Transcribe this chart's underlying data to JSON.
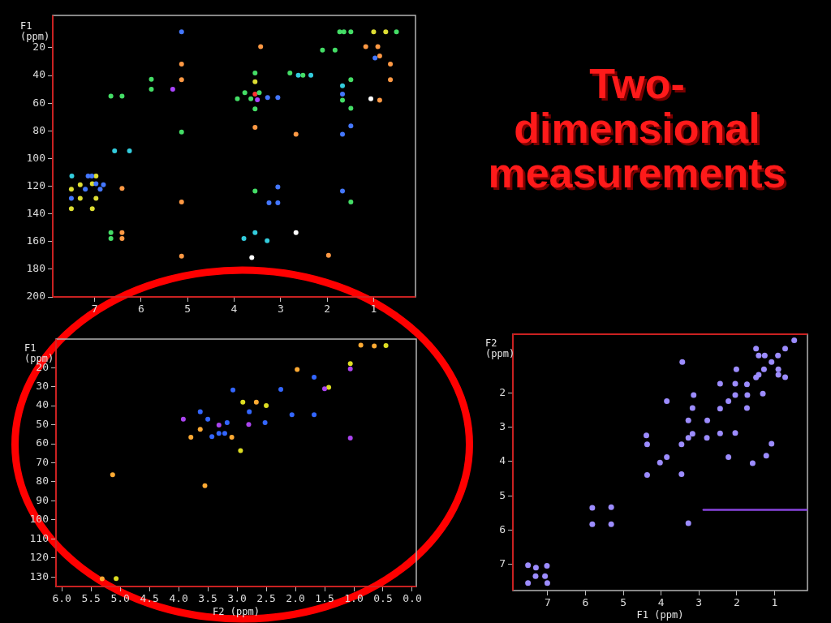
{
  "chart_data": [
    {
      "type": "scatter",
      "ylabel": "F1 (ppm)",
      "xlim": [
        7.9,
        0.1
      ],
      "ylim": [
        200,
        -3.4
      ],
      "xticks": [
        7,
        6,
        5,
        4,
        3,
        2,
        1
      ],
      "yticks": [
        20,
        40,
        60,
        80,
        100,
        120,
        140,
        160,
        180,
        200
      ],
      "marker": "circle",
      "series": [
        {
          "color": "#44dd66",
          "x": [
            5.78,
            5.78,
            6.65,
            6.41,
            5.13,
            6.65,
            6.65,
            1.73,
            1.64,
            1.49,
            0.51,
            2.1,
            1.83,
            2.8,
            2.52,
            1.49,
            1.67,
            1.49,
            3.93,
            3.77,
            3.64,
            3.46,
            3.55,
            3.55,
            1.49,
            3.55
          ],
          "values": [
            42.7,
            50,
            54.9,
            54.9,
            80.8,
            153.5,
            157.8,
            8.4,
            8.4,
            8.4,
            8.4,
            21.6,
            21.6,
            38.2,
            39.8,
            43.1,
            57.8,
            63.7,
            56.9,
            52.5,
            56.9,
            52.5,
            64.1,
            123.5,
            131.4,
            38.2
          ]
        },
        {
          "color": "#33ccdd",
          "x": [
            6.57,
            6.25,
            7.49,
            2.62,
            2.35,
            1.67,
            3.55,
            3.29,
            3.79
          ],
          "values": [
            94.5,
            94.5,
            112.7,
            39.8,
            39.8,
            47.4,
            153.5,
            159.4,
            157.8
          ]
        },
        {
          "color": "#4477ff",
          "x": [
            5.13,
            7.06,
            7.14,
            6.97,
            7.2,
            6.88,
            6.81,
            7.5,
            1.67,
            1.49,
            1.67,
            0.97,
            3.28,
            3.06,
            3.06,
            3.06,
            3.25,
            1.67
          ],
          "values": [
            8.4,
            112.7,
            112.7,
            118.2,
            122.2,
            122.2,
            119,
            128.8,
            53.5,
            76.5,
            82.4,
            27.4,
            55.9,
            55.9,
            120.6,
            132,
            132,
            123.5
          ]
        },
        {
          "color": "#dddd33",
          "x": [
            6.97,
            7.5,
            7.31,
            7.05,
            7.31,
            6.97,
            7.5,
            7.05,
            1.0,
            0.74,
            3.55
          ],
          "values": [
            112.7,
            122.2,
            119,
            118.2,
            128.8,
            128.8,
            136.3,
            136.3,
            8.4,
            8.4,
            44.5
          ]
        },
        {
          "color": "#ff9944",
          "x": [
            5.13,
            5.13,
            6.41,
            5.13,
            6.41,
            6.41,
            5.13,
            3.43,
            1.17,
            0.91,
            0.87,
            0.64,
            0.64,
            0.87,
            3.55,
            2.67,
            1.97
          ],
          "values": [
            31.8,
            43.1,
            121.6,
            131.4,
            153.5,
            157.8,
            170.6,
            19.2,
            19.2,
            19.2,
            25.9,
            31.8,
            43.1,
            57.8,
            77.5,
            82.4,
            170
          ]
        },
        {
          "color": "#aa44ff",
          "x": [
            5.32,
            3.5
          ],
          "values": [
            50,
            57.5
          ]
        },
        {
          "color": "#ff3333",
          "x": [
            3.55
          ],
          "values": [
            53.5
          ]
        },
        {
          "color": "#ffffff",
          "x": [
            1.06,
            2.67,
            3.62
          ],
          "values": [
            56.9,
            153.5,
            171.6
          ]
        }
      ]
    },
    {
      "type": "other",
      "title": "Two-dimensional measurements"
    },
    {
      "type": "scatter",
      "xlabel": "F2 (ppm)",
      "ylabel": "F1 (ppm)",
      "xlim": [
        6.1,
        -0.07
      ],
      "ylim": [
        135,
        5
      ],
      "xticks": [
        {
          "value": 6,
          "label": "6.0"
        },
        5.5,
        {
          "value": 5,
          "label": "5.0"
        },
        4.5,
        {
          "value": 4,
          "label": "4.0"
        },
        3.5,
        {
          "value": 3,
          "label": "3.0"
        },
        2.5,
        {
          "value": 2,
          "label": "2.0"
        },
        1.5,
        {
          "value": 1,
          "label": "1.0"
        },
        0.5,
        {
          "value": 0,
          "label": "0.0"
        }
      ],
      "yticks": [
        20,
        30,
        40,
        50,
        60,
        70,
        80,
        90,
        100,
        110,
        120,
        130
      ],
      "marker": "circle",
      "series": [
        {
          "color": "#3366ff",
          "x": [
            3.07,
            3.63,
            3.5,
            3.17,
            3.43,
            3.31,
            3.21,
            1.68,
            2.25,
            2.79,
            2.06,
            1.68,
            2.52
          ],
          "values": [
            31.7,
            43.2,
            47.1,
            48.9,
            56.3,
            54.6,
            54.6,
            25.0,
            31.4,
            43.2,
            44.7,
            44.7,
            48.9
          ]
        },
        {
          "color": "#aa44ee",
          "x": [
            3.92,
            3.31,
            1.5,
            1.06,
            2.8,
            1.06
          ],
          "values": [
            47.1,
            50.2,
            31.1,
            20.7,
            49.9,
            57.0
          ]
        },
        {
          "color": "#ffaa33",
          "x": [
            3.63,
            3.79,
            3.09,
            5.13,
            3.55,
            5.31,
            1.97,
            2.67,
            0.88,
            0.65
          ],
          "values": [
            52.4,
            56.6,
            56.6,
            76.3,
            82,
            130.9,
            21.0,
            38.1,
            8.2,
            8.6
          ]
        },
        {
          "color": "#dddd22",
          "x": [
            2.94,
            5.07,
            2.9,
            1.43,
            1.06,
            2.5,
            0.45
          ],
          "values": [
            63.6,
            130.8,
            38.1,
            30.4,
            17.9,
            40,
            8.4
          ]
        }
      ]
    },
    {
      "type": "scatter",
      "xlabel": "F1 (ppm)",
      "ylabel": "F2 (ppm)",
      "xlim": [
        7.92,
        0.13
      ],
      "ylim": [
        7.76,
        0.29
      ],
      "xticks": [
        7,
        6,
        5,
        4,
        3,
        2,
        1
      ],
      "yticks": [
        2,
        3,
        4,
        5,
        6,
        7
      ],
      "marker": "circle",
      "series": [
        {
          "color": "#9c8cff",
          "x": [
            0.48,
            1.49,
            0.72,
            1.42,
            1.26,
            0.91,
            1.08,
            3.44,
            1.28,
            2.01,
            0.9,
            1.42,
            0.9,
            1.49,
            0.72,
            2.44,
            2.04,
            1.73,
            3.14,
            2.04,
            1.72,
            1.31,
            3.85,
            2.22,
            3.17,
            2.44,
            1.73,
            3.28,
            2.78,
            3.17,
            4.39,
            2.44,
            2.04,
            3.28,
            2.79,
            3.46,
            4.37,
            1.08,
            3.85,
            2.22,
            1.22,
            4.03,
            1.58,
            4.37,
            3.46,
            5.82,
            5.32,
            5.82,
            5.32,
            3.28,
            7.52,
            7.31,
            7.02,
            7.32,
            7.07,
            7.52,
            7.01
          ],
          "values": [
            0.47,
            0.71,
            0.71,
            0.91,
            0.91,
            0.91,
            1.1,
            1.1,
            1.31,
            1.31,
            1.31,
            1.47,
            1.47,
            1.55,
            1.54,
            1.73,
            1.73,
            1.75,
            2.06,
            2.06,
            2.06,
            2.02,
            2.24,
            2.24,
            2.44,
            2.46,
            2.44,
            2.8,
            2.8,
            3.19,
            3.24,
            3.18,
            3.17,
            3.31,
            3.31,
            3.5,
            3.5,
            3.48,
            3.87,
            3.87,
            3.83,
            4.03,
            4.05,
            4.39,
            4.37,
            5.35,
            5.33,
            5.83,
            5.83,
            5.8,
            7.02,
            7.09,
            7.04,
            7.34,
            7.34,
            7.54,
            7.54
          ]
        },
        {
          "type": "line",
          "marker": "none",
          "color": "#8844dd",
          "x": [
            2.88,
            0.13
          ],
          "values": [
            5.41,
            5.41
          ]
        }
      ]
    }
  ]
}
